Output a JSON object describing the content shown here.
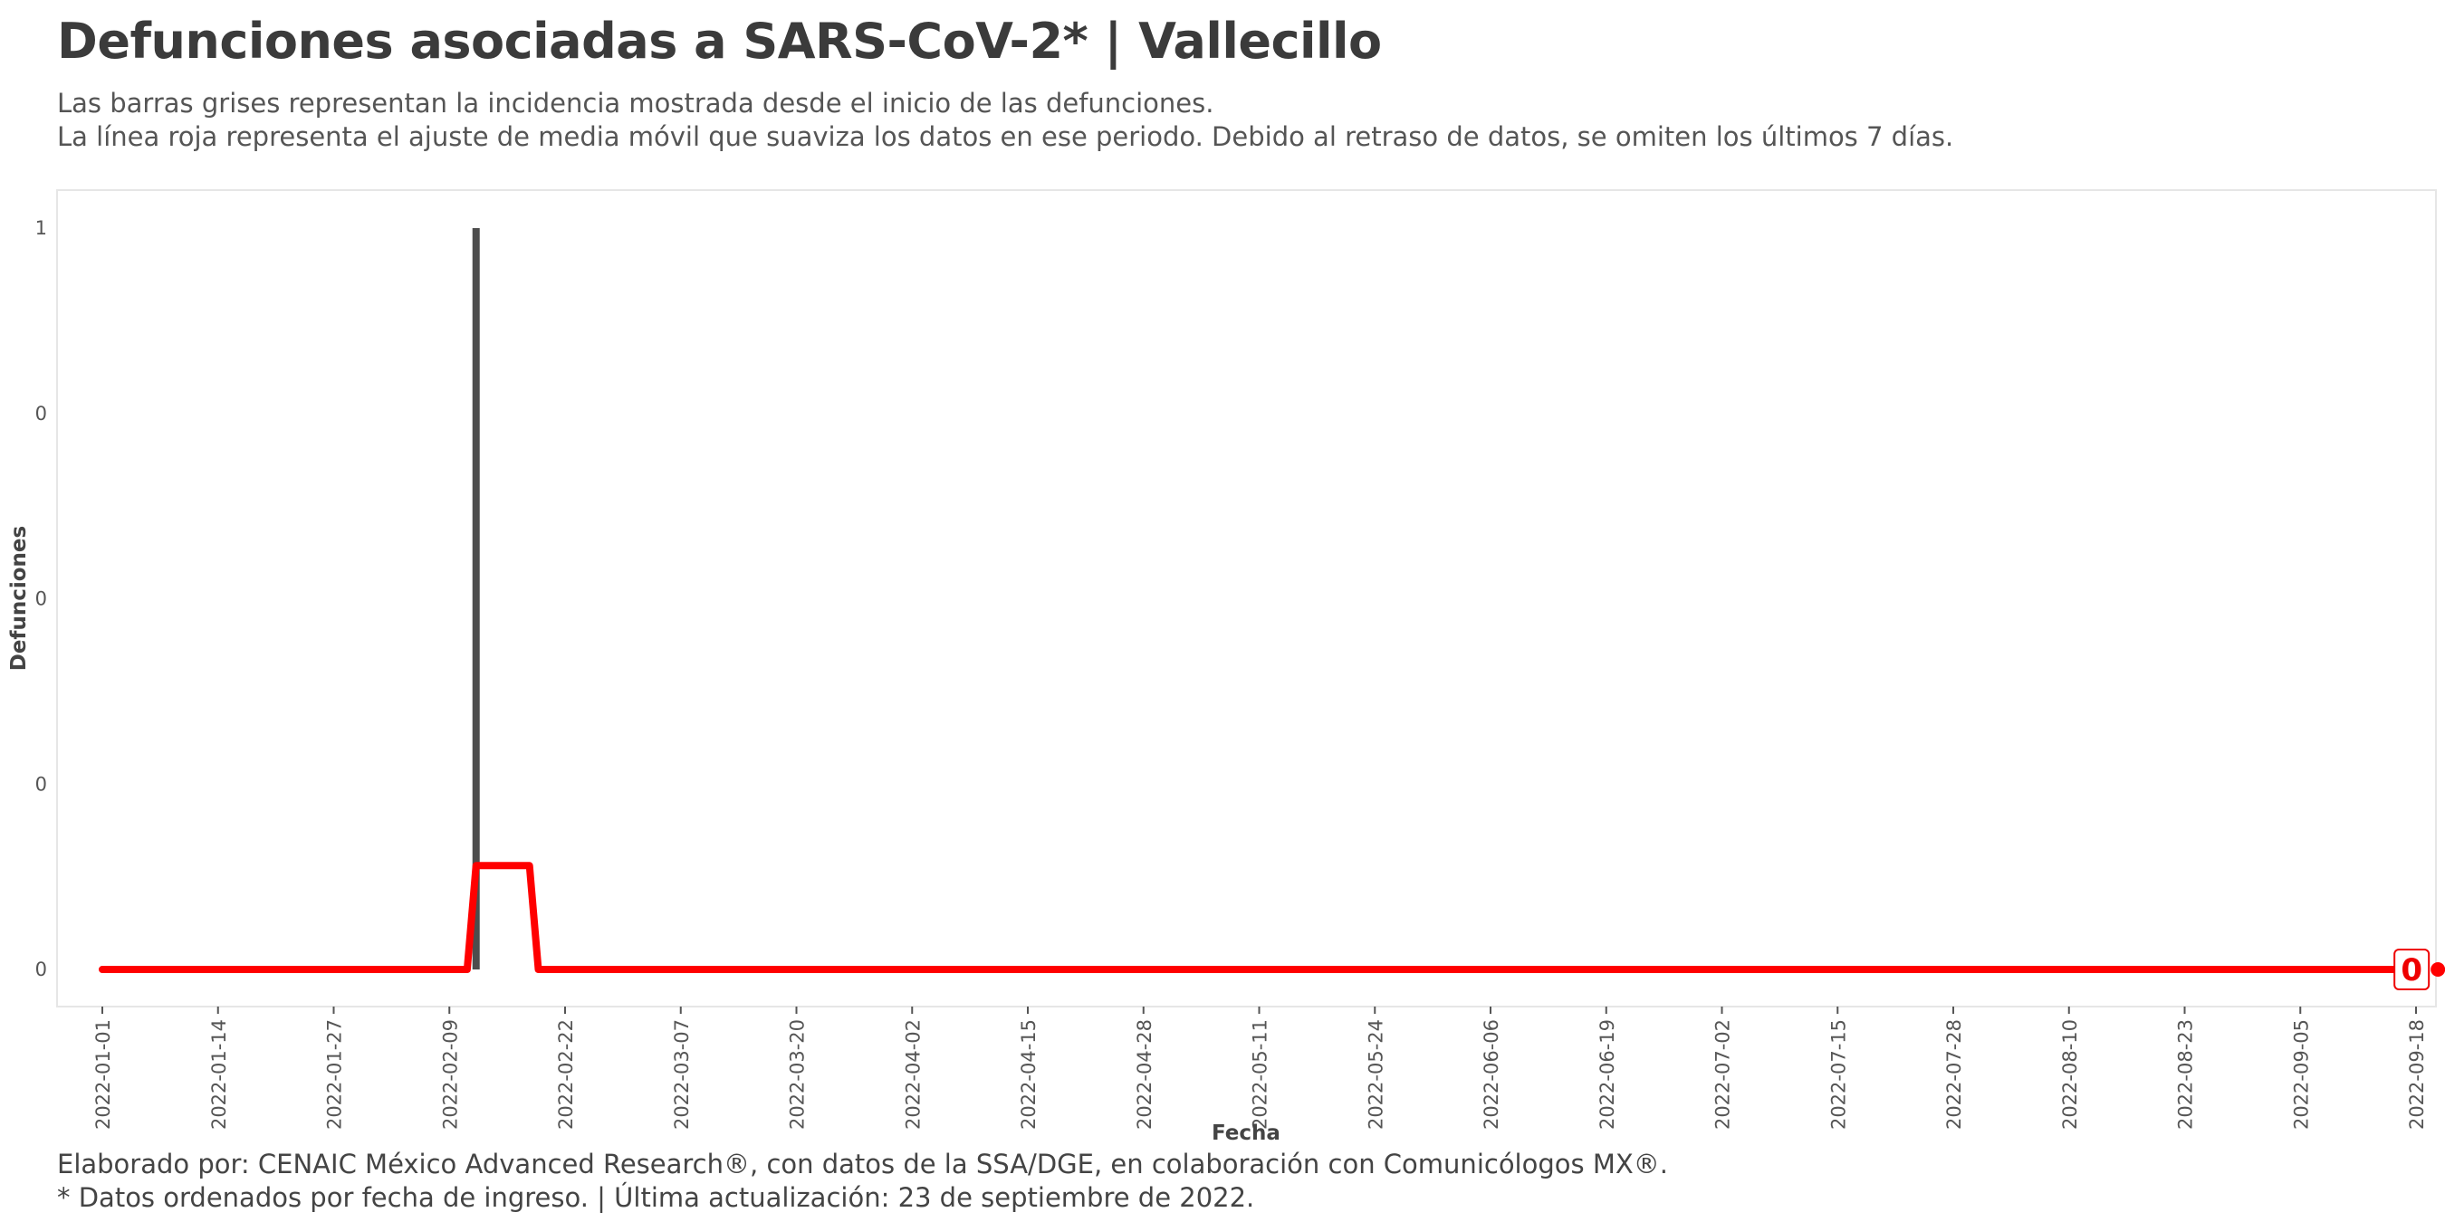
{
  "header": {
    "title": "Defunciones asociadas a SARS-CoV-2* | Vallecillo",
    "subtitle_line1": "Las barras grises representan la incidencia mostrada desde el inicio de las defunciones.",
    "subtitle_line2": "La línea roja representa el ajuste de media móvil que suaviza los datos en ese periodo. Debido al retraso de datos, se omiten los últimos 7 días."
  },
  "footer": {
    "caption_line1": "Elaborado por: CENAIC México Advanced Research®, con datos de la SSA/DGE, en colaboración con Comunicólogos MX®.",
    "caption_line2": "* Datos ordenados por fecha de ingreso. | Última actualización: 23 de septiembre de 2022."
  },
  "colors": {
    "bar": "#4d4d4d",
    "moving_average": "#ff0000",
    "panel_border": "#e6e6e6",
    "end_label": "#ee0000"
  },
  "chart_data": {
    "type": "bar",
    "xlabel": "Fecha",
    "ylabel": "Defunciones",
    "x_ticks": [
      "2022-01-01",
      "2022-01-14",
      "2022-01-27",
      "2022-02-09",
      "2022-02-22",
      "2022-03-07",
      "2022-03-20",
      "2022-04-02",
      "2022-04-15",
      "2022-04-28",
      "2022-05-11",
      "2022-05-24",
      "2022-06-06",
      "2022-06-19",
      "2022-07-02",
      "2022-07-15",
      "2022-07-28",
      "2022-08-10",
      "2022-08-23",
      "2022-09-05",
      "2022-09-18"
    ],
    "y_ticks": [
      {
        "value": 0,
        "label": "0"
      },
      {
        "value": 0.25,
        "label": "0"
      },
      {
        "value": 0.5,
        "label": "0"
      },
      {
        "value": 0.75,
        "label": "0"
      },
      {
        "value": 1,
        "label": "1"
      }
    ],
    "xlim": [
      "2022-01-01",
      "2022-09-18"
    ],
    "ylim": [
      0,
      1
    ],
    "grid": false,
    "series": [
      {
        "type": "bar",
        "points": [
          {
            "x": "2022-02-12",
            "y": 1
          }
        ]
      },
      {
        "type": "line",
        "points": [
          {
            "x": "2022-01-01",
            "y": 0
          },
          {
            "x": "2022-02-11",
            "y": 0
          },
          {
            "x": "2022-02-12",
            "y": 0.14
          },
          {
            "x": "2022-02-18",
            "y": 0.14
          },
          {
            "x": "2022-02-19",
            "y": 0
          },
          {
            "x": "2022-09-16",
            "y": 0
          }
        ],
        "end_value": "0",
        "end_point": {
          "x": "2022-09-17",
          "y": 0
        }
      }
    ]
  }
}
